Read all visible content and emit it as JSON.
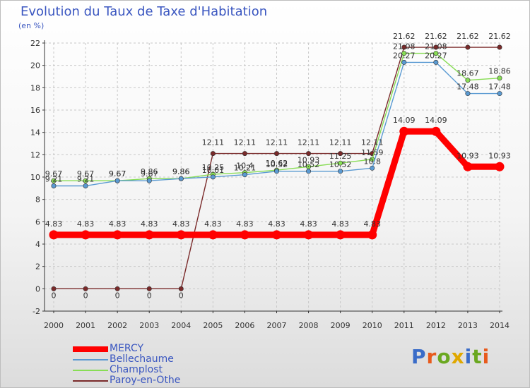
{
  "header": {
    "title": "Evolution du Taux de Taxe d'Habitation",
    "unit": "(en %)"
  },
  "logo": {
    "text": "Proxiti",
    "colors": [
      "#3a6cc8",
      "#e85a1c",
      "#6aa820",
      "#e0a800",
      "#3a6cc8",
      "#6aa820",
      "#e85a1c"
    ]
  },
  "chart_data": {
    "type": "line",
    "title": "Evolution du Taux de Taxe d'Habitation",
    "ylabel": "(en %)",
    "xlabel": "",
    "x": [
      "2000",
      "2001",
      "2002",
      "2003",
      "2004",
      "2005",
      "2006",
      "2007",
      "2008",
      "2009",
      "2010",
      "2011",
      "2012",
      "2013",
      "2014"
    ],
    "ylim": [
      -2,
      22
    ],
    "yticks": [
      -2,
      0,
      2,
      4,
      6,
      8,
      10,
      12,
      14,
      16,
      18,
      20,
      22
    ],
    "grid": true,
    "legend_position": "bottom-left",
    "series": [
      {
        "name": "MERCY",
        "color": "#ff0000",
        "values": [
          4.83,
          4.83,
          4.83,
          4.83,
          4.83,
          4.83,
          4.83,
          4.83,
          4.83,
          4.83,
          4.83,
          14.09,
          14.09,
          10.93,
          10.93
        ],
        "labels": [
          "4.83",
          "4.83",
          "4.83",
          "4.83",
          "4.83",
          "4.83",
          "4.83",
          "4.83",
          "4.83",
          "4.83",
          "4.83",
          "14.09",
          "14.09",
          "10.93",
          "10.93"
        ]
      },
      {
        "name": "Bellechaume",
        "color": "#5a9ad2",
        "values": [
          9.21,
          9.21,
          9.67,
          9.67,
          9.86,
          10.01,
          10.21,
          10.52,
          10.52,
          10.52,
          10.8,
          20.27,
          20.27,
          17.48,
          17.48
        ],
        "labels": [
          "9.21",
          "9.21",
          "9.67",
          "9.67",
          "9.86",
          "10.01",
          "10.21",
          "10.52",
          "10.52",
          "10.52",
          "10.8",
          "20.27",
          "20.27",
          "17.48",
          "17.48"
        ]
      },
      {
        "name": "Champlost",
        "color": "#88dd55",
        "values": [
          9.67,
          9.67,
          9.67,
          9.86,
          9.86,
          10.25,
          10.4,
          10.62,
          10.93,
          11.25,
          11.59,
          21.08,
          21.08,
          18.67,
          18.86
        ],
        "labels": [
          "9.67",
          "9.67",
          "9.67",
          "9.86",
          "9.86",
          "10.25",
          "10.4",
          "10.62",
          "10.93",
          "11.25",
          "11.59",
          "21.08",
          "21.08",
          "18.67",
          "18.86"
        ]
      },
      {
        "name": "Paroy-en-Othe",
        "color": "#7a2a2a",
        "values": [
          0,
          0,
          0,
          0,
          0,
          12.11,
          12.11,
          12.11,
          12.11,
          12.11,
          12.11,
          21.62,
          21.62,
          21.62,
          21.62
        ],
        "labels": [
          "0",
          "0",
          "0",
          "0",
          "0",
          "12.11",
          "12.11",
          "12.11",
          "12.11",
          "12.11",
          "12.11",
          "21.62",
          "21.62",
          "21.62",
          "21.62"
        ]
      }
    ]
  }
}
